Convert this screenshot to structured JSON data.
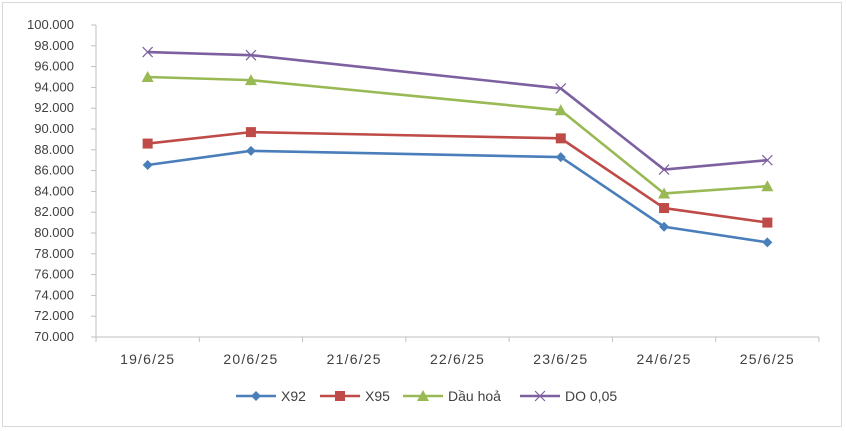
{
  "chart_data": {
    "type": "line",
    "title": "",
    "xlabel": "",
    "ylabel": "",
    "categories": [
      "19/6/25",
      "20/6/25",
      "21/6/25",
      "22/6/25",
      "23/6/25",
      "24/6/25",
      "25/6/25"
    ],
    "ylim": [
      70000,
      100000
    ],
    "ytick_step": 2000,
    "ytick_labels": [
      "70.000",
      "72.000",
      "74.000",
      "76.000",
      "78.000",
      "80.000",
      "82.000",
      "84.000",
      "86.000",
      "88.000",
      "90.000",
      "92.000",
      "94.000",
      "96.000",
      "98.000",
      "100.000"
    ],
    "grid": false,
    "legend_position": "bottom",
    "series": [
      {
        "name": "X92",
        "color": "#4a7ebb",
        "marker": "diamond",
        "values": [
          86540,
          87900,
          null,
          null,
          87300,
          80600,
          79100
        ]
      },
      {
        "name": "X95",
        "color": "#be4b48",
        "marker": "square",
        "values": [
          88600,
          89700,
          null,
          null,
          89100,
          82400,
          81000
        ]
      },
      {
        "name": "Dầu hoả",
        "color": "#98b954",
        "marker": "triangle",
        "values": [
          95000,
          94700,
          null,
          null,
          91800,
          83800,
          84500
        ]
      },
      {
        "name": "DO 0,05",
        "color": "#7d60a0",
        "marker": "x",
        "values": [
          97400,
          97100,
          null,
          null,
          93900,
          86100,
          87000
        ]
      }
    ]
  }
}
